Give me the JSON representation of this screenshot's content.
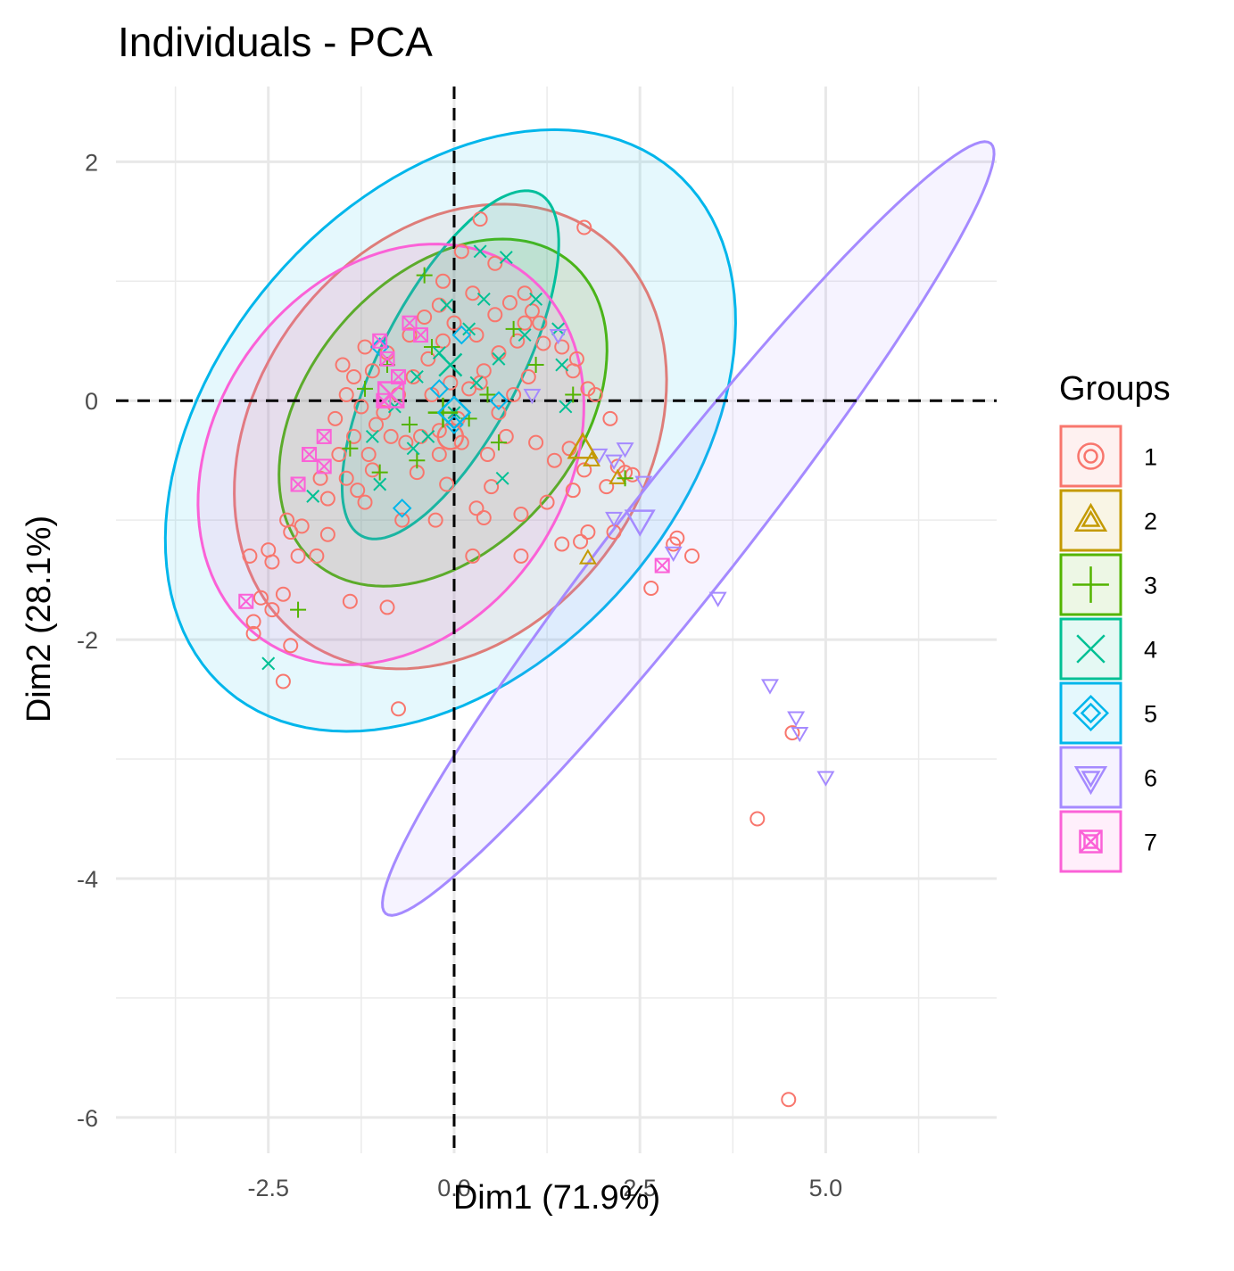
{
  "chart_data": {
    "type": "scatter",
    "title": "Individuals - PCA",
    "xlabel": "Dim1 (71.9%)",
    "ylabel": "Dim2 (28.1%)",
    "xlim": [
      -4.55,
      7.3
    ],
    "ylim": [
      -6.3,
      2.63
    ],
    "x_ticks": [
      -2.5,
      0.0,
      2.5,
      5.0
    ],
    "x_tick_labels": [
      "-2.5",
      "0.0",
      "2.5",
      "5.0"
    ],
    "y_ticks": [
      2,
      0,
      -2,
      -4,
      -6
    ],
    "y_tick_labels": [
      "2",
      "0",
      "-2",
      "-4",
      "-6"
    ],
    "grid": true,
    "reference_lines": {
      "x": 0,
      "y": 0,
      "style": "dashed"
    },
    "legend": {
      "title": "Groups",
      "position": "right"
    },
    "series": [
      {
        "name": "1",
        "color": "#F8766D",
        "shape": "circle",
        "centroid": [
          -0.05,
          -0.3
        ],
        "ellipse": {
          "cx": -0.05,
          "cy": -0.3,
          "rx": 2.97,
          "ry": 1.85,
          "angle": 15
        },
        "points": [
          [
            -0.75,
            -2.58
          ],
          [
            4.08,
            -3.5
          ],
          [
            4.5,
            -5.85
          ],
          [
            4.55,
            -2.78
          ],
          [
            -2.3,
            -2.35
          ],
          [
            -2.2,
            -2.05
          ],
          [
            -2.7,
            -1.95
          ],
          [
            -2.7,
            -1.85
          ],
          [
            -2.6,
            -1.65
          ],
          [
            -2.45,
            -1.75
          ],
          [
            -2.3,
            -1.62
          ],
          [
            -2.75,
            -1.3
          ],
          [
            -2.5,
            -1.25
          ],
          [
            -2.45,
            -1.35
          ],
          [
            -2.1,
            -1.3
          ],
          [
            -1.85,
            -1.3
          ],
          [
            -1.7,
            -1.12
          ],
          [
            -2.25,
            -1.0
          ],
          [
            -2.2,
            -1.1
          ],
          [
            -2.05,
            -1.05
          ],
          [
            -1.4,
            -1.68
          ],
          [
            -0.9,
            -1.73
          ],
          [
            -1.7,
            -0.82
          ],
          [
            -1.45,
            -0.65
          ],
          [
            -1.3,
            -0.75
          ],
          [
            -1.1,
            -0.58
          ],
          [
            -0.7,
            -1.0
          ],
          [
            -0.25,
            -1.0
          ],
          [
            -0.1,
            -0.7
          ],
          [
            0.3,
            -0.9
          ],
          [
            0.4,
            -0.98
          ],
          [
            0.5,
            -0.72
          ],
          [
            0.9,
            -0.95
          ],
          [
            1.25,
            -0.85
          ],
          [
            1.6,
            -0.75
          ],
          [
            1.75,
            -0.58
          ],
          [
            2.05,
            -0.72
          ],
          [
            2.3,
            -0.6
          ],
          [
            2.15,
            -1.1
          ],
          [
            1.7,
            -1.18
          ],
          [
            1.45,
            -1.2
          ],
          [
            1.8,
            -1.1
          ],
          [
            2.65,
            -1.57
          ],
          [
            2.95,
            -1.2
          ],
          [
            3.0,
            -1.15
          ],
          [
            3.2,
            -1.3
          ],
          [
            0.9,
            -1.3
          ],
          [
            0.25,
            -1.3
          ],
          [
            2.1,
            -0.15
          ],
          [
            2.2,
            -0.55
          ],
          [
            2.4,
            -0.62
          ],
          [
            1.9,
            0.05
          ],
          [
            1.8,
            0.1
          ],
          [
            1.6,
            0.25
          ],
          [
            1.45,
            0.45
          ],
          [
            1.65,
            0.35
          ],
          [
            1.75,
            1.45
          ],
          [
            0.35,
            1.52
          ],
          [
            0.1,
            1.25
          ],
          [
            0.55,
            1.15
          ],
          [
            0.95,
            0.9
          ],
          [
            1.05,
            0.75
          ],
          [
            1.15,
            0.65
          ],
          [
            0.85,
            0.5
          ],
          [
            0.6,
            0.4
          ],
          [
            0.4,
            0.25
          ],
          [
            0.2,
            0.1
          ],
          [
            0.05,
            -0.15
          ],
          [
            -0.2,
            -0.25
          ],
          [
            -0.45,
            -0.3
          ],
          [
            -0.65,
            -0.35
          ],
          [
            -0.85,
            -0.3
          ],
          [
            -1.05,
            -0.2
          ],
          [
            -1.25,
            -0.05
          ],
          [
            -1.45,
            0.05
          ],
          [
            -1.6,
            -0.15
          ],
          [
            -1.35,
            -0.3
          ],
          [
            -1.15,
            -0.45
          ],
          [
            -0.95,
            -0.1
          ],
          [
            -0.75,
            0.05
          ],
          [
            -0.55,
            0.2
          ],
          [
            -0.35,
            0.35
          ],
          [
            -0.15,
            0.5
          ],
          [
            0.0,
            0.65
          ],
          [
            -0.2,
            0.8
          ],
          [
            -0.4,
            0.7
          ],
          [
            -0.6,
            0.55
          ],
          [
            -0.9,
            0.4
          ],
          [
            -1.1,
            0.25
          ],
          [
            -1.35,
            0.2
          ],
          [
            -1.5,
            0.3
          ],
          [
            0.3,
            0.55
          ],
          [
            0.55,
            0.72
          ],
          [
            0.75,
            0.82
          ],
          [
            0.95,
            0.65
          ],
          [
            1.2,
            0.48
          ],
          [
            1.0,
            0.2
          ],
          [
            0.8,
            0.05
          ],
          [
            0.6,
            -0.1
          ],
          [
            0.7,
            -0.3
          ],
          [
            1.1,
            -0.35
          ],
          [
            1.35,
            -0.5
          ],
          [
            1.55,
            -0.4
          ],
          [
            -1.2,
            0.45
          ],
          [
            -0.5,
            -0.6
          ],
          [
            -0.2,
            -0.45
          ],
          [
            0.1,
            -0.35
          ],
          [
            0.45,
            -0.45
          ],
          [
            -1.55,
            -0.45
          ],
          [
            -1.8,
            -0.65
          ],
          [
            -1.2,
            -0.85
          ],
          [
            -0.15,
            1.0
          ],
          [
            0.25,
            0.9
          ],
          [
            0.35,
            0.15
          ],
          [
            -0.05,
            0.15
          ],
          [
            -0.3,
            0.05
          ]
        ]
      },
      {
        "name": "2",
        "color": "#C49A00",
        "shape": "triangle",
        "centroid": [
          1.73,
          -0.4
        ],
        "points": [
          [
            1.8,
            -1.32
          ],
          [
            1.85,
            -0.5
          ],
          [
            2.2,
            -0.65
          ]
        ]
      },
      {
        "name": "3",
        "color": "#53B400",
        "shape": "plus",
        "centroid": [
          -0.15,
          -0.1
        ],
        "ellipse": {
          "cx": -0.15,
          "cy": -0.1,
          "rx": 2.3,
          "ry": 1.3,
          "angle": 20
        },
        "points": [
          [
            -2.1,
            -1.75
          ],
          [
            2.3,
            -0.65
          ],
          [
            1.1,
            0.3
          ],
          [
            -0.5,
            -0.5
          ],
          [
            -1.0,
            -0.6
          ],
          [
            0.6,
            -0.35
          ],
          [
            -1.2,
            0.1
          ],
          [
            -0.6,
            -0.2
          ],
          [
            0.2,
            -0.15
          ],
          [
            -0.9,
            0.3
          ],
          [
            0.8,
            0.6
          ],
          [
            -0.3,
            0.45
          ],
          [
            0.45,
            0.05
          ],
          [
            -1.4,
            -0.4
          ],
          [
            -0.4,
            1.05
          ],
          [
            1.6,
            0.05
          ]
        ]
      },
      {
        "name": "4",
        "color": "#00C094",
        "shape": "x",
        "centroid": [
          -0.05,
          0.3
        ],
        "ellipse": {
          "cx": -0.05,
          "cy": 0.3,
          "rx": 1.9,
          "ry": 0.8,
          "angle": 45
        },
        "points": [
          [
            -2.5,
            -2.2
          ],
          [
            0.65,
            -0.65
          ],
          [
            -1.9,
            -0.8
          ],
          [
            -1.0,
            -0.7
          ],
          [
            0.35,
            1.25
          ],
          [
            0.7,
            1.2
          ],
          [
            1.1,
            0.85
          ],
          [
            1.4,
            0.6
          ],
          [
            1.45,
            0.3
          ],
          [
            0.95,
            0.55
          ],
          [
            0.6,
            0.35
          ],
          [
            0.2,
            0.6
          ],
          [
            -0.2,
            0.4
          ],
          [
            -0.5,
            0.2
          ],
          [
            -0.8,
            -0.05
          ],
          [
            -1.1,
            -0.3
          ],
          [
            0.0,
            -0.1
          ],
          [
            0.3,
            0.15
          ],
          [
            -0.35,
            -0.3
          ],
          [
            -0.55,
            -0.4
          ],
          [
            1.5,
            -0.05
          ],
          [
            0.4,
            0.85
          ],
          [
            -0.1,
            0.8
          ]
        ]
      },
      {
        "name": "5",
        "color": "#00B6EB",
        "shape": "diamond",
        "centroid": [
          0.0,
          -0.1
        ],
        "ellipse": {
          "cx": -0.05,
          "cy": -0.25,
          "rx": 4.0,
          "ry": 2.25,
          "angle": 20
        },
        "points": [
          [
            -0.7,
            -0.9
          ],
          [
            0.0,
            -0.2
          ],
          [
            -1.0,
            0.45
          ],
          [
            0.1,
            0.55
          ],
          [
            0.6,
            0.0
          ],
          [
            -0.2,
            0.1
          ]
        ]
      },
      {
        "name": "6",
        "color": "#A58AFF",
        "shape": "triangle-down",
        "centroid": [
          2.5,
          -1.0
        ],
        "ellipse": {
          "cx": 3.15,
          "cy": -1.07,
          "rx": 5.2,
          "ry": 0.62,
          "angle": 38
        },
        "points": [
          [
            5.0,
            -3.15
          ],
          [
            4.65,
            -2.78
          ],
          [
            4.6,
            -2.65
          ],
          [
            4.25,
            -2.38
          ],
          [
            3.55,
            -1.65
          ],
          [
            2.95,
            -1.27
          ],
          [
            2.15,
            -0.98
          ],
          [
            2.3,
            -0.4
          ],
          [
            2.55,
            -0.68
          ],
          [
            1.95,
            -0.45
          ],
          [
            1.4,
            0.55
          ],
          [
            1.05,
            0.05
          ],
          [
            2.15,
            -0.5
          ]
        ]
      },
      {
        "name": "7",
        "color": "#FB61D7",
        "shape": "square-cross",
        "centroid": [
          -0.85,
          0.05
        ],
        "ellipse": {
          "cx": -0.85,
          "cy": -0.45,
          "rx": 2.65,
          "ry": 1.68,
          "angle": 15
        },
        "points": [
          [
            -2.8,
            -1.68
          ],
          [
            2.8,
            -1.38
          ],
          [
            -2.1,
            -0.7
          ],
          [
            -1.95,
            -0.45
          ],
          [
            -1.75,
            -0.55
          ],
          [
            -1.75,
            -0.3
          ],
          [
            -1.0,
            0.5
          ],
          [
            -0.9,
            0.35
          ],
          [
            -0.75,
            0.2
          ],
          [
            -0.6,
            0.65
          ],
          [
            -0.45,
            0.55
          ],
          [
            -0.95,
            0.0
          ]
        ]
      }
    ]
  }
}
